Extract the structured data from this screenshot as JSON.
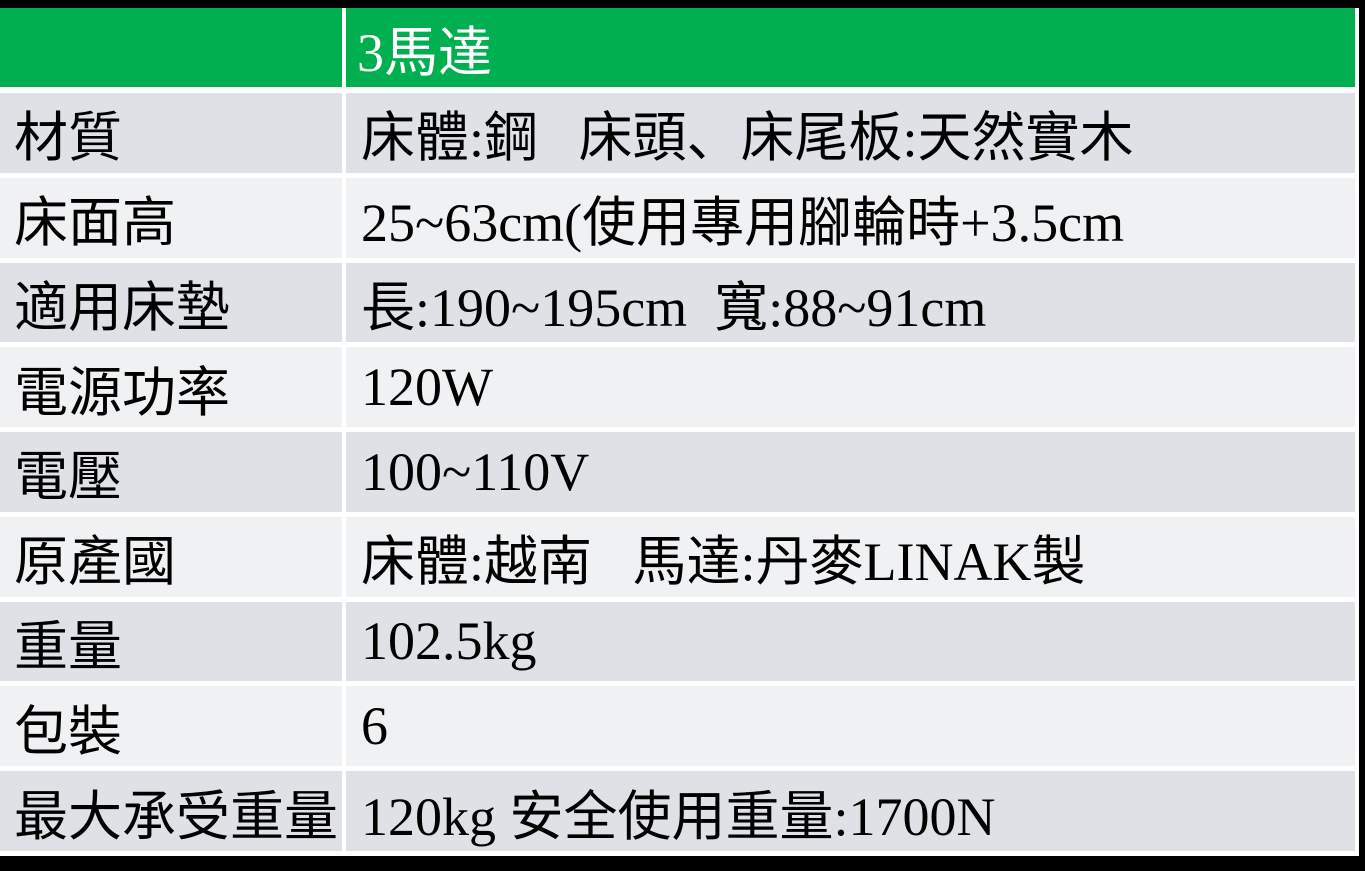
{
  "page": {
    "background": "#000000",
    "description": "Product specification table for an electric adjustable bed (3-motor model)"
  },
  "colors": {
    "header_green": "#00B050",
    "header_text": "#FFFFFF",
    "row_band_dark": "#DEE1E5",
    "row_band_light": "#F0F1F3",
    "body_text": "#000000",
    "grid_white": "#FFFFFF"
  },
  "table": {
    "header": {
      "label_col": "",
      "value_col": "3馬達"
    },
    "rows": [
      {
        "label": "材質",
        "value": "床體:鋼   床頭、床尾板:天然實木"
      },
      {
        "label": "床面高",
        "value": "25~63cm(使用專用腳輪時+3.5cm"
      },
      {
        "label": "適用床墊",
        "value": "長:190~195cm  寬:88~91cm"
      },
      {
        "label": "電源功率",
        "value": "120W"
      },
      {
        "label": "電壓",
        "value": "100~110V"
      },
      {
        "label": "原產國",
        "value": "床體:越南   馬達:丹麥LINAK製"
      },
      {
        "label": "重量",
        "value": "102.5kg"
      },
      {
        "label": "包裝",
        "value": "6"
      },
      {
        "label": "最大承受重量",
        "value": "120kg 安全使用重量:1700N"
      }
    ]
  }
}
